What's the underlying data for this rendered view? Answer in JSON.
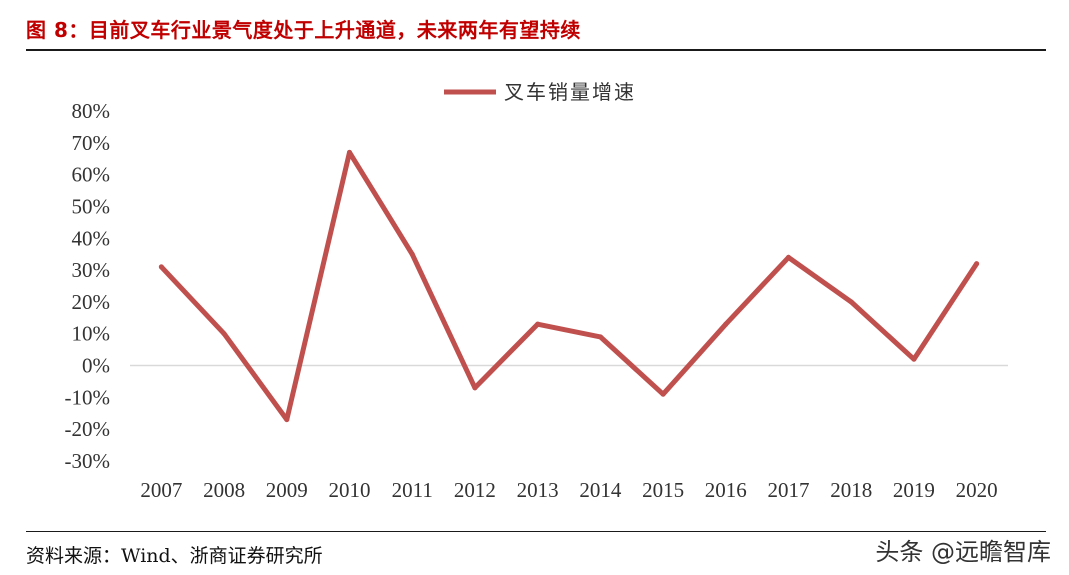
{
  "header": {
    "figure_title": "图 8：目前叉车行业景气度处于上升通道，未来两年有望持续"
  },
  "footer": {
    "source": "资料来源：Wind、浙商证券研究所",
    "watermark": "头条 @远瞻智库"
  },
  "colors": {
    "title": "#c00000",
    "series_line": "#c0504d",
    "zero_line": "#d9d9d9"
  },
  "chart_data": {
    "type": "line",
    "title": "",
    "xlabel": "",
    "ylabel": "",
    "categories": [
      "2007",
      "2008",
      "2009",
      "2010",
      "2011",
      "2012",
      "2013",
      "2014",
      "2015",
      "2016",
      "2017",
      "2018",
      "2019",
      "2020"
    ],
    "series": [
      {
        "name": "叉车销量增速",
        "values": [
          0.31,
          0.1,
          -0.17,
          0.67,
          0.35,
          -0.07,
          0.13,
          0.09,
          -0.09,
          0.13,
          0.34,
          0.2,
          0.02,
          0.32
        ]
      }
    ],
    "ylim": [
      -0.3,
      0.8
    ],
    "yticks": [
      0.8,
      0.7,
      0.6,
      0.5,
      0.4,
      0.3,
      0.2,
      0.1,
      0.0,
      -0.1,
      -0.2,
      -0.3
    ],
    "ytick_labels": [
      "80%",
      "70%",
      "60%",
      "50%",
      "40%",
      "30%",
      "20%",
      "10%",
      "0%",
      "-10%",
      "-20%",
      "-30%"
    ],
    "grid": false,
    "zero_line": true,
    "legend": "top-center"
  }
}
